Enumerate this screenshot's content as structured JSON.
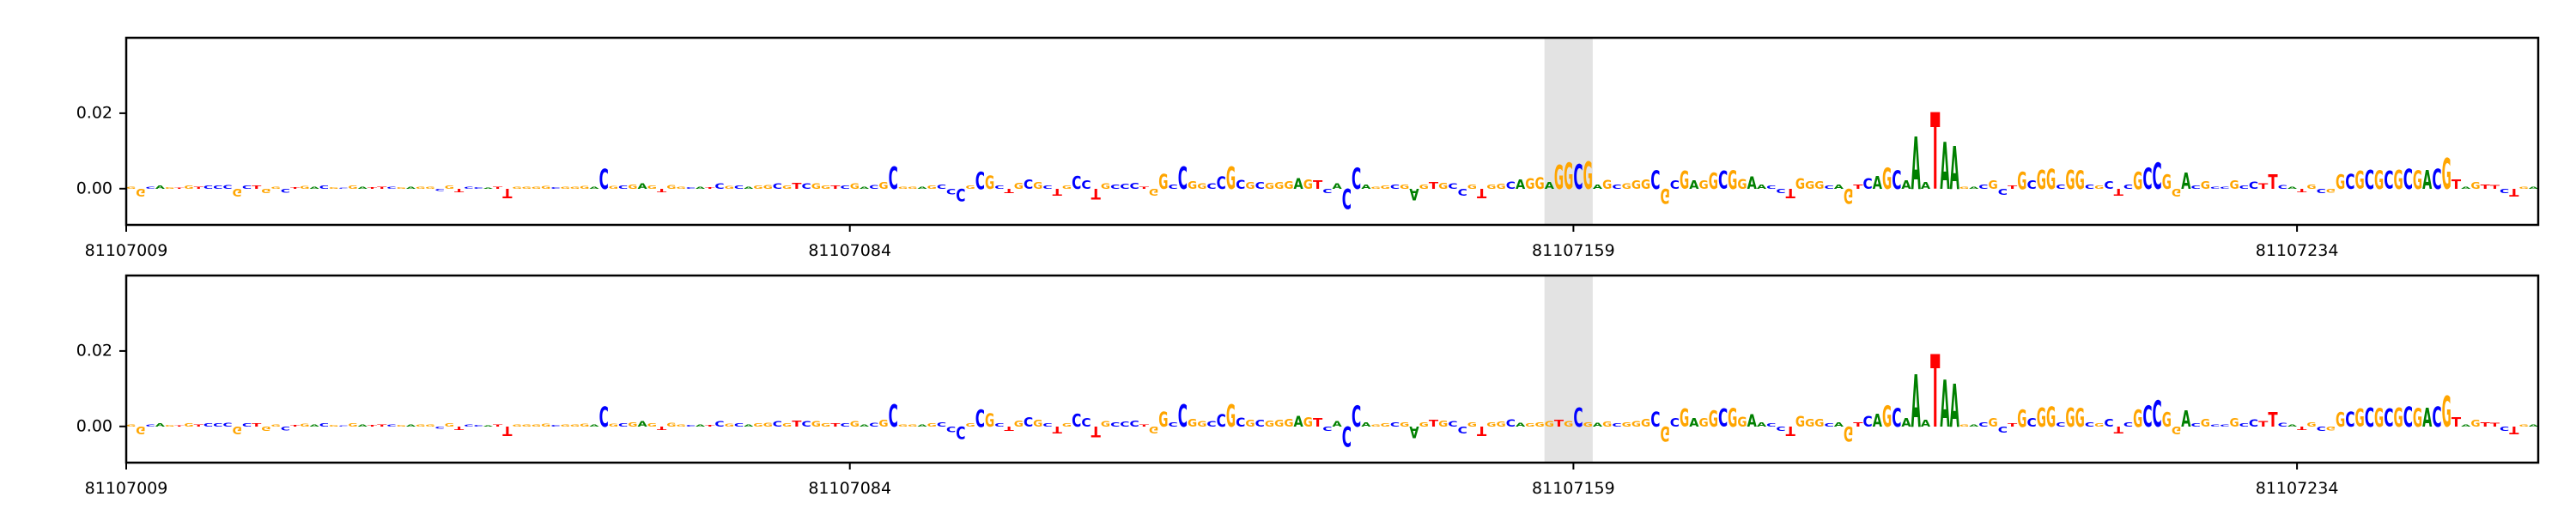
{
  "chart_data": [
    {
      "type": "logo",
      "sequence": "GGCAGTGTCCCGCTGGCTGACGCGATTCGAGGCGTCCATTGGGGCGGGACGCGAGTGGCATCGCAGGCGTCGGTCGACGCGGAGCCCGCGCTGCGCTGCCTGCCCTGGCCGGCCGCGCGGGAGTCACCAGGCGAGTGCCGTGGCAGGAGGCGAGCGGGCGCGAGGCGGAACCTGGGCAGTCAGCAAATAAGACGCTGCGGCGGCGCTCGCCGGACGCCGCCTTCATGCGGCGCGCGCGACGTAGTTCTGA",
      "values": [
        0.0005,
        -0.002,
        0.0006,
        0.0009,
        0.0004,
        0.0003,
        0.0008,
        0.0005,
        0.0008,
        0.0009,
        0.001,
        -0.002,
        0.0009,
        0.0008,
        -0.0012,
        0.0006,
        -0.001,
        0.0004,
        0.0007,
        0.0005,
        0.0008,
        0.0004,
        0.0003,
        0.0009,
        0.0005,
        0.0004,
        0.0006,
        0.0005,
        0.0004,
        0.0005,
        0.0006,
        0.0005,
        -0.0006,
        0.0009,
        -0.0008,
        0.0005,
        0.0004,
        0.0003,
        0.0005,
        -0.0025,
        0.0006,
        0.0005,
        0.0006,
        0.0007,
        0.0004,
        0.0005,
        0.0006,
        0.0007,
        0.0006,
        0.0052,
        0.0007,
        0.0008,
        0.0012,
        0.0014,
        0.0009,
        -0.0008,
        0.001,
        0.0006,
        0.0004,
        0.0005,
        0.0004,
        0.0015,
        0.0007,
        0.0008,
        0.0006,
        0.0009,
        0.001,
        0.0014,
        0.0009,
        0.0016,
        0.0014,
        0.0015,
        0.0009,
        0.0008,
        0.0009,
        0.0014,
        0.0005,
        0.001,
        0.0018,
        0.0058,
        0.0006,
        0.0005,
        0.0006,
        0.0009,
        0.0012,
        -0.0015,
        -0.0032,
        0.0008,
        0.0045,
        0.0035,
        0.0008,
        -0.0012,
        0.0016,
        0.0025,
        0.0018,
        0.0009,
        -0.0018,
        0.0009,
        0.0034,
        0.0022,
        -0.0028,
        0.0014,
        0.0012,
        0.0013,
        0.0016,
        0.0006,
        -0.0018,
        0.0039,
        0.0012,
        0.0058,
        0.0021,
        0.0014,
        0.0014,
        0.0032,
        0.0058,
        0.0023,
        0.0018,
        0.0018,
        0.0016,
        0.0017,
        0.002,
        0.0028,
        0.0024,
        0.0022,
        -0.0012,
        0.0015,
        -0.0052,
        0.0056,
        0.0012,
        0.0006,
        0.0009,
        0.0011,
        0.0012,
        -0.003,
        0.0012,
        0.0018,
        0.0016,
        0.0015,
        -0.0018,
        0.0011,
        -0.0025,
        0.0012,
        0.0013,
        0.0019,
        0.0024,
        0.0028,
        0.003,
        0.0018,
        0.0062,
        0.0068,
        0.0064,
        0.0072,
        0.0012,
        0.0023,
        0.0012,
        0.0015,
        0.0022,
        0.0025,
        0.0048,
        -0.004,
        0.0022,
        0.0046,
        0.0022,
        0.0022,
        0.0042,
        0.0046,
        0.0048,
        0.0026,
        0.0032,
        0.0012,
        0.0008,
        -0.0012,
        -0.0024,
        0.0028,
        0.002,
        0.0021,
        0.0008,
        0.0012,
        -0.004,
        0.0012,
        0.0028,
        0.0034,
        0.0056,
        0.0048,
        0.0022,
        0.0138,
        0.0018,
        0.02,
        0.0122,
        0.0112,
        0.0006,
        0.0005,
        0.0012,
        0.0022,
        -0.0016,
        0.0008,
        0.0045,
        0.0022,
        0.005,
        0.0052,
        0.0012,
        0.0049,
        0.0048,
        0.0012,
        0.0008,
        0.0021,
        -0.0018,
        0.0012,
        0.0045,
        0.0055,
        0.0068,
        0.0038,
        -0.002,
        0.0042,
        0.0008,
        0.0021,
        0.0005,
        0.0006,
        0.0022,
        0.0008,
        0.0019,
        0.0014,
        0.0038,
        0.001,
        0.0006,
        -0.0008,
        0.0012,
        -0.0012,
        -0.001,
        0.0038,
        0.004,
        0.0046,
        0.005,
        0.0048,
        0.0046,
        0.005,
        0.0052,
        0.0048,
        0.005,
        0.0052,
        0.008,
        0.0024,
        0.0006,
        0.0018,
        0.0012,
        0.001,
        -0.0012,
        -0.002,
        0.0006,
        0.0005
      ],
      "colors": {
        "A": "#008000",
        "C": "#0000ff",
        "G": "#ffa500",
        "T": "#ff0000"
      },
      "xlim": [
        81107009,
        81107259
      ],
      "xticks": [
        81107009,
        81107084,
        81107159,
        81107234
      ],
      "ylim": [
        -0.0096,
        0.04
      ],
      "yticks": [
        {
          "value": 0,
          "label": "0.00"
        },
        {
          "value": 0.02,
          "label": "0.02"
        }
      ],
      "highlight": [
        81107156,
        81107161
      ]
    },
    {
      "type": "logo",
      "sequence": "GGCAGTGTCCCGCTGGCTGACGCGATTCGAGGCGTCCATTGGGGCGGGACGCGAGTGGCATCGCAGGCGTCGGTCGACGCGGAGCCCGCGCTGCGCTGCCTGCCCTGGCCGGCCGCGCGGGAGTCACCAGGCGAGTGCCGTGGCAGGGTGCGAGCGGGCGCGAGGCGGAACCTGGGCAGTCAGCAAATAAGACGCTGCGGCGGCGCTCGCCGGACGCCGCCTTCATGCGGCGCGCGCGACGTAGTTCTGA",
      "values": [
        0.0005,
        -0.002,
        0.0006,
        0.0009,
        0.0004,
        0.0003,
        0.0008,
        0.0005,
        0.0008,
        0.0009,
        0.001,
        -0.002,
        0.0009,
        0.0008,
        -0.0012,
        0.0006,
        -0.001,
        0.0004,
        0.0007,
        0.0005,
        0.0008,
        0.0004,
        0.0003,
        0.0009,
        0.0005,
        0.0004,
        0.0006,
        0.0005,
        0.0004,
        0.0005,
        0.0006,
        0.0005,
        -0.0006,
        0.0009,
        -0.0008,
        0.0005,
        0.0004,
        0.0003,
        0.0005,
        -0.0025,
        0.0006,
        0.0005,
        0.0006,
        0.0007,
        0.0004,
        0.0005,
        0.0006,
        0.0007,
        0.0006,
        0.0052,
        0.0007,
        0.0008,
        0.0012,
        0.0014,
        0.0009,
        -0.0008,
        0.001,
        0.0006,
        0.0004,
        0.0005,
        0.0004,
        0.0015,
        0.0007,
        0.0008,
        0.0006,
        0.0009,
        0.001,
        0.0014,
        0.0009,
        0.0016,
        0.0014,
        0.0015,
        0.0009,
        0.0008,
        0.0009,
        0.0014,
        0.0005,
        0.001,
        0.0018,
        0.0058,
        0.0006,
        0.0005,
        0.0006,
        0.0009,
        0.0012,
        -0.0015,
        -0.0032,
        0.0008,
        0.0045,
        0.0035,
        0.0008,
        -0.0012,
        0.0016,
        0.0025,
        0.0018,
        0.0009,
        -0.0018,
        0.0009,
        0.0034,
        0.0022,
        -0.0028,
        0.0014,
        0.0012,
        0.0013,
        0.0016,
        0.0006,
        -0.0018,
        0.0039,
        0.0012,
        0.0058,
        0.0021,
        0.0014,
        0.0014,
        0.0032,
        0.0058,
        0.0023,
        0.0018,
        0.0018,
        0.0016,
        0.0017,
        0.002,
        0.0028,
        0.0024,
        0.0022,
        -0.0012,
        0.0015,
        -0.0052,
        0.0056,
        0.0012,
        0.0006,
        0.0009,
        0.0011,
        0.0012,
        -0.003,
        0.0012,
        0.0018,
        0.0016,
        0.0015,
        -0.0018,
        0.0011,
        -0.0025,
        0.0012,
        0.0013,
        0.0019,
        0.001,
        0.0008,
        0.0012,
        0.0014,
        0.0018,
        0.0015,
        0.005,
        0.0012,
        0.001,
        0.0013,
        0.0009,
        0.0012,
        0.0015,
        0.002,
        0.004,
        -0.004,
        0.0022,
        0.0046,
        0.0022,
        0.0022,
        0.0042,
        0.0046,
        0.0048,
        0.0026,
        0.0032,
        0.0012,
        0.0008,
        -0.0012,
        -0.0024,
        0.0028,
        0.002,
        0.0021,
        0.0008,
        0.0012,
        -0.004,
        0.0012,
        0.0028,
        0.0034,
        0.0056,
        0.0048,
        0.0022,
        0.0138,
        0.0018,
        0.019,
        0.0122,
        0.0112,
        0.0006,
        0.0005,
        0.0012,
        0.0022,
        -0.0016,
        0.0008,
        0.0045,
        0.0022,
        0.005,
        0.0052,
        0.0012,
        0.0049,
        0.0048,
        0.0012,
        0.0008,
        0.0021,
        -0.0018,
        0.0012,
        0.0045,
        0.0055,
        0.0068,
        0.0038,
        -0.002,
        0.0042,
        0.0008,
        0.0021,
        0.0005,
        0.0006,
        0.0022,
        0.0008,
        0.0019,
        0.0014,
        0.0038,
        0.001,
        0.0006,
        -0.0008,
        0.0012,
        -0.0012,
        -0.001,
        0.0038,
        0.004,
        0.0046,
        0.005,
        0.0048,
        0.0046,
        0.005,
        0.0052,
        0.0048,
        0.005,
        0.0052,
        0.008,
        0.0024,
        0.0006,
        0.0018,
        0.0012,
        0.001,
        -0.0012,
        -0.002,
        0.0006,
        0.0005
      ],
      "colors": {
        "A": "#008000",
        "C": "#0000ff",
        "G": "#ffa500",
        "T": "#ff0000"
      },
      "xlim": [
        81107009,
        81107259
      ],
      "xticks": [
        81107009,
        81107084,
        81107159,
        81107234
      ],
      "ylim": [
        -0.0096,
        0.04
      ],
      "yticks": [
        {
          "value": 0,
          "label": "0.00"
        },
        {
          "value": 0.02,
          "label": "0.02"
        }
      ],
      "highlight": [
        81107156,
        81107161
      ]
    }
  ]
}
